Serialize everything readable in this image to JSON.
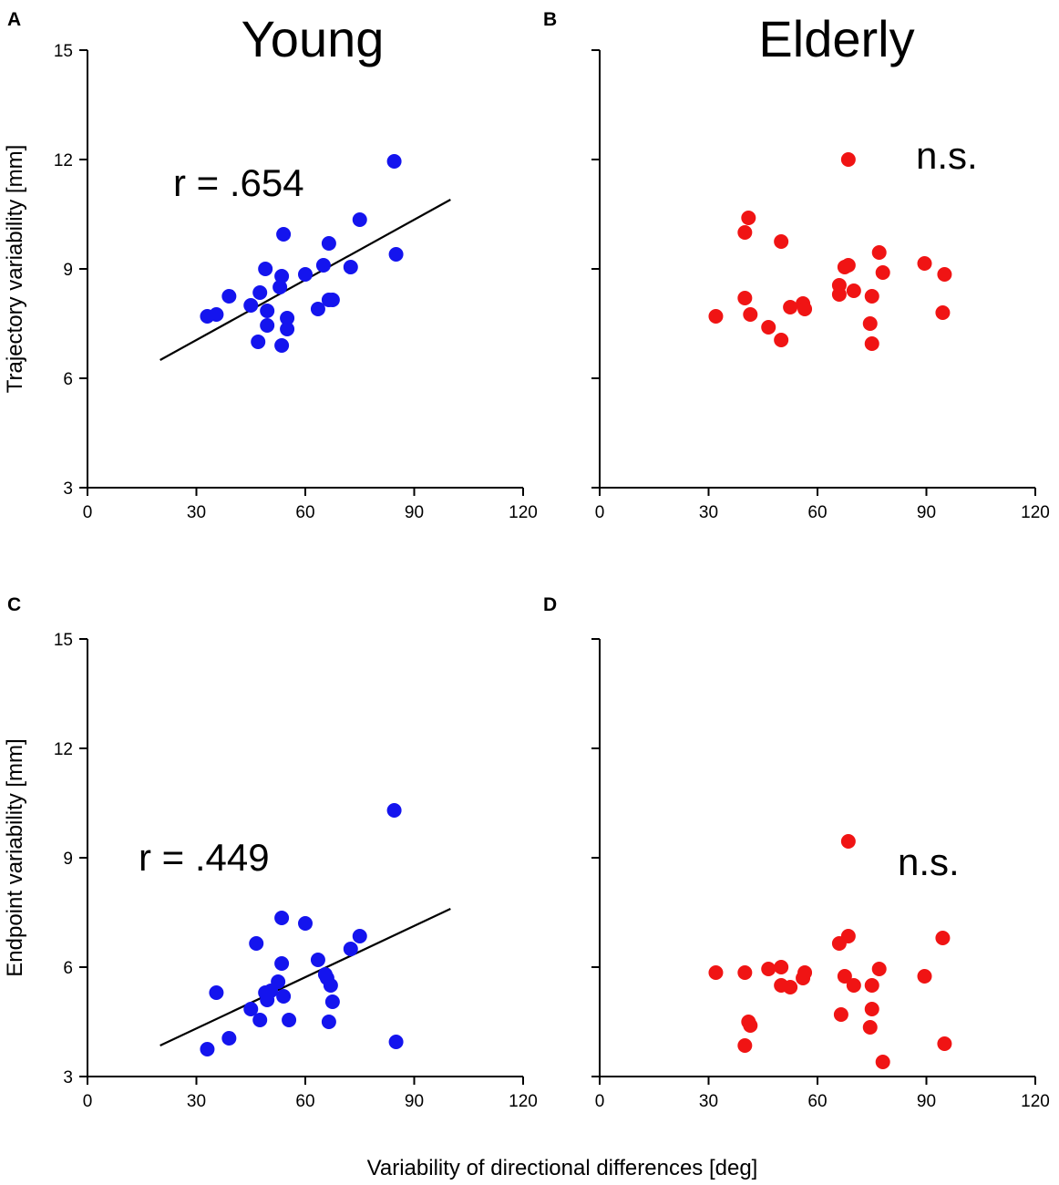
{
  "figure": {
    "shared_xlabel": "Variability of directional differences  [deg]",
    "column_titles": [
      "Young",
      "Elderly"
    ],
    "colors": {
      "young": "#1414ee",
      "elderly": "#f01414",
      "axis": "#000000"
    }
  },
  "chart_data": [
    {
      "panel": "A",
      "type": "scatter",
      "group": "Young",
      "ylabel": "Trajectory variability  [mm]",
      "xlim": [
        0,
        120
      ],
      "ylim": [
        3,
        15
      ],
      "xticks": [
        "0",
        "30",
        "60",
        "90",
        "120"
      ],
      "yticks": [
        "3",
        "6",
        "9",
        "12",
        "15"
      ],
      "annotation": "r = .654",
      "color": "#1414ee",
      "regression": {
        "x": [
          20,
          100
        ],
        "y": [
          6.5,
          10.9
        ]
      },
      "points": [
        [
          33,
          7.7
        ],
        [
          35.5,
          7.75
        ],
        [
          39,
          8.25
        ],
        [
          45,
          8.0
        ],
        [
          47.5,
          8.35
        ],
        [
          49,
          9.0
        ],
        [
          49.5,
          7.85
        ],
        [
          49.5,
          7.45
        ],
        [
          47,
          7.0
        ],
        [
          53,
          8.5
        ],
        [
          53.5,
          8.8
        ],
        [
          54,
          9.95
        ],
        [
          55,
          7.65
        ],
        [
          55,
          7.35
        ],
        [
          53.5,
          6.9
        ],
        [
          60,
          8.85
        ],
        [
          63.5,
          7.9
        ],
        [
          65,
          9.1
        ],
        [
          66.5,
          9.7
        ],
        [
          66.5,
          8.15
        ],
        [
          67.5,
          8.15
        ],
        [
          72.5,
          9.05
        ],
        [
          75,
          10.35
        ],
        [
          84.5,
          11.95
        ],
        [
          85,
          9.4
        ]
      ]
    },
    {
      "panel": "B",
      "type": "scatter",
      "group": "Elderly",
      "xlim": [
        0,
        120
      ],
      "ylim": [
        3,
        15
      ],
      "xticks": [
        "0",
        "30",
        "60",
        "90",
        "120"
      ],
      "annotation": "n.s.",
      "color": "#f01414",
      "points": [
        [
          32,
          7.7
        ],
        [
          40,
          10.0
        ],
        [
          40,
          8.2
        ],
        [
          41,
          10.4
        ],
        [
          41.5,
          7.75
        ],
        [
          46.5,
          7.4
        ],
        [
          50,
          7.05
        ],
        [
          50,
          9.75
        ],
        [
          52.5,
          7.95
        ],
        [
          56,
          8.05
        ],
        [
          56.5,
          7.9
        ],
        [
          66,
          8.55
        ],
        [
          66,
          8.3
        ],
        [
          67.5,
          9.05
        ],
        [
          68.5,
          9.1
        ],
        [
          68.5,
          12.0
        ],
        [
          70,
          8.4
        ],
        [
          74.5,
          7.5
        ],
        [
          75,
          6.95
        ],
        [
          75,
          8.25
        ],
        [
          77,
          9.45
        ],
        [
          78,
          8.9
        ],
        [
          89.5,
          9.15
        ],
        [
          94.5,
          7.8
        ],
        [
          95,
          8.85
        ]
      ]
    },
    {
      "panel": "C",
      "type": "scatter",
      "group": "Young",
      "ylabel": "Endpoint variability  [mm]",
      "xlim": [
        0,
        120
      ],
      "ylim": [
        3,
        15
      ],
      "xticks": [
        "0",
        "30",
        "60",
        "90",
        "120"
      ],
      "yticks": [
        "3",
        "6",
        "9",
        "12",
        "15"
      ],
      "annotation": "r = .449",
      "color": "#1414ee",
      "regression": {
        "x": [
          20,
          100
        ],
        "y": [
          3.85,
          7.6
        ]
      },
      "points": [
        [
          33,
          3.75
        ],
        [
          35.5,
          5.3
        ],
        [
          39,
          4.05
        ],
        [
          45,
          4.85
        ],
        [
          46.5,
          6.65
        ],
        [
          47.5,
          4.55
        ],
        [
          49,
          5.3
        ],
        [
          49.5,
          5.1
        ],
        [
          50.5,
          5.35
        ],
        [
          52.5,
          5.6
        ],
        [
          53.5,
          6.1
        ],
        [
          53.5,
          7.35
        ],
        [
          54,
          5.2
        ],
        [
          55.5,
          4.55
        ],
        [
          60,
          7.2
        ],
        [
          63.5,
          6.2
        ],
        [
          65.5,
          5.8
        ],
        [
          66,
          5.7
        ],
        [
          66.5,
          4.5
        ],
        [
          67,
          5.5
        ],
        [
          67.5,
          5.05
        ],
        [
          72.5,
          6.5
        ],
        [
          75,
          6.85
        ],
        [
          84.5,
          10.3
        ],
        [
          85,
          3.95
        ]
      ]
    },
    {
      "panel": "D",
      "type": "scatter",
      "group": "Elderly",
      "xlim": [
        0,
        120
      ],
      "ylim": [
        3,
        15
      ],
      "xticks": [
        "0",
        "30",
        "60",
        "90",
        "120"
      ],
      "annotation": "n.s.",
      "color": "#f01414",
      "points": [
        [
          32,
          5.85
        ],
        [
          40,
          5.85
        ],
        [
          40,
          3.85
        ],
        [
          41,
          4.5
        ],
        [
          41.5,
          4.4
        ],
        [
          46.5,
          5.95
        ],
        [
          50,
          6.0
        ],
        [
          50,
          5.5
        ],
        [
          52.5,
          5.45
        ],
        [
          56,
          5.7
        ],
        [
          56.5,
          5.85
        ],
        [
          66,
          6.65
        ],
        [
          66.5,
          4.7
        ],
        [
          67.5,
          5.75
        ],
        [
          68.5,
          6.85
        ],
        [
          68.5,
          9.45
        ],
        [
          70,
          5.5
        ],
        [
          74.5,
          4.35
        ],
        [
          75,
          5.5
        ],
        [
          75,
          4.85
        ],
        [
          77,
          5.95
        ],
        [
          78,
          3.4
        ],
        [
          89.5,
          5.75
        ],
        [
          94.5,
          6.8
        ],
        [
          95,
          3.9
        ]
      ]
    }
  ]
}
